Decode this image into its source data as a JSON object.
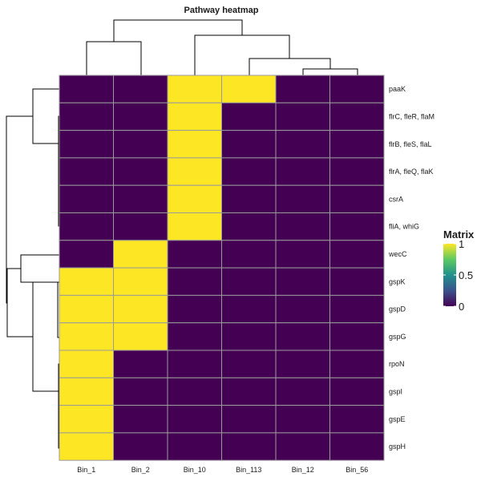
{
  "chart_data": {
    "type": "heatmap",
    "title": "Pathway heatmap",
    "columns": [
      "Bin_1",
      "Bin_2",
      "Bin_10",
      "Bin_113",
      "Bin_12",
      "Bin_56"
    ],
    "rows": [
      "paaK",
      "flrC, fleR, flaM",
      "flrB, fleS, flaL",
      "flrA, fleQ, flaK",
      "csrA",
      "fliA, whiG",
      "wecC",
      "gspK",
      "gspD",
      "gspG",
      "rpoN",
      "gspI",
      "gspE",
      "gspH"
    ],
    "values": [
      [
        0,
        0,
        1,
        1,
        0,
        0
      ],
      [
        0,
        0,
        1,
        0,
        0,
        0
      ],
      [
        0,
        0,
        1,
        0,
        0,
        0
      ],
      [
        0,
        0,
        1,
        0,
        0,
        0
      ],
      [
        0,
        0,
        1,
        0,
        0,
        0
      ],
      [
        0,
        0,
        1,
        0,
        0,
        0
      ],
      [
        0,
        1,
        0,
        0,
        0,
        0
      ],
      [
        1,
        1,
        0,
        0,
        0,
        0
      ],
      [
        1,
        1,
        0,
        0,
        0,
        0
      ],
      [
        1,
        1,
        0,
        0,
        0,
        0
      ],
      [
        1,
        0,
        0,
        0,
        0,
        0
      ],
      [
        1,
        0,
        0,
        0,
        0,
        0
      ],
      [
        1,
        0,
        0,
        0,
        0,
        0
      ],
      [
        1,
        0,
        0,
        0,
        0,
        0
      ]
    ],
    "legend": {
      "title": "Matrix",
      "placement": "right",
      "ticks": [
        1,
        0.5,
        0
      ],
      "colormap": "viridis",
      "min": 0,
      "max": 1
    },
    "colors": {
      "low": "#440154",
      "high": "#fde725",
      "grid": "#9a9a9a"
    },
    "row_dendrogram": true,
    "column_dendrogram": true
  }
}
